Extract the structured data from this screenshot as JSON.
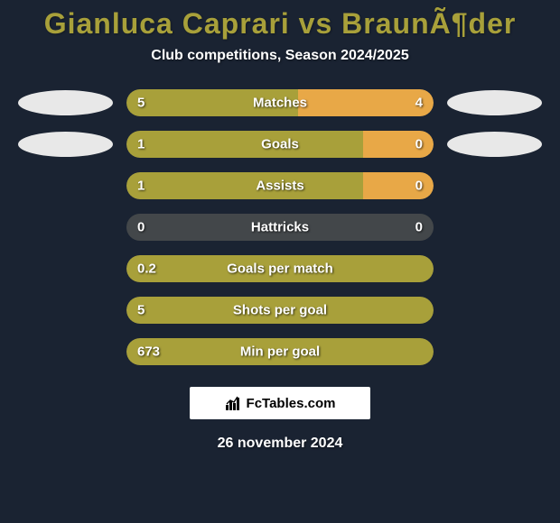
{
  "title": "Gianluca Caprari vs BraunÃ¶der",
  "subtitle": "Club competitions, Season 2024/2025",
  "date": "26 november 2024",
  "footer_brand": "FcTables.com",
  "colors": {
    "background": "#1a2332",
    "title": "#a8a03a",
    "bar_track": "#43474a",
    "bar_left": "#a8a03a",
    "bar_right": "#e8a847",
    "ellipse": "#e8e8e8",
    "text": "#ffffff"
  },
  "stats": [
    {
      "label": "Matches",
      "left_val": "5",
      "right_val": "4",
      "left_pct": 56,
      "right_pct": 44,
      "has_ellipses": true
    },
    {
      "label": "Goals",
      "left_val": "1",
      "right_val": "0",
      "left_pct": 77,
      "right_pct": 23,
      "has_ellipses": true
    },
    {
      "label": "Assists",
      "left_val": "1",
      "right_val": "0",
      "left_pct": 77,
      "right_pct": 23,
      "has_ellipses": false
    },
    {
      "label": "Hattricks",
      "left_val": "0",
      "right_val": "0",
      "left_pct": 0,
      "right_pct": 0,
      "has_ellipses": false
    },
    {
      "label": "Goals per match",
      "left_val": "0.2",
      "right_val": "",
      "left_pct": 100,
      "right_pct": 0,
      "has_ellipses": false
    },
    {
      "label": "Shots per goal",
      "left_val": "5",
      "right_val": "",
      "left_pct": 100,
      "right_pct": 0,
      "has_ellipses": false
    },
    {
      "label": "Min per goal",
      "left_val": "673",
      "right_val": "",
      "left_pct": 100,
      "right_pct": 0,
      "has_ellipses": false
    }
  ]
}
